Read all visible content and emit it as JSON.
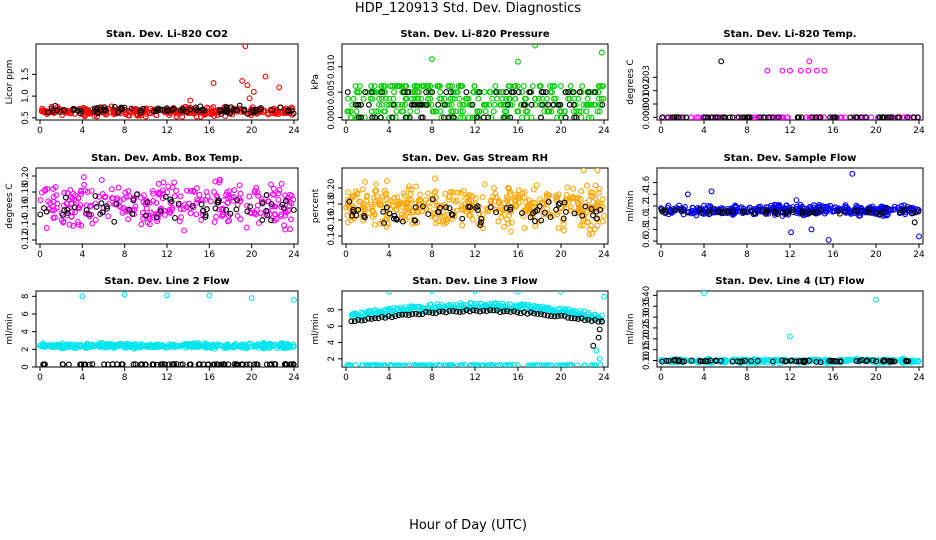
{
  "title": "HDP_120913 Std. Dev. Diagnostics",
  "xcaption": "Hour of Day (UTC)",
  "colors": {
    "black": "#000000",
    "red": "#ff0000",
    "green": "#00cc00",
    "magenta": "#ff00ff",
    "orange": "#ffa500",
    "blue": "#0000ff",
    "cyan": "#00e5ee"
  },
  "chart_data": [
    {
      "type": "scatter",
      "title": "Stan. Dev. Li-820 CO2",
      "ylabel": "Licor ppm",
      "xlim": [
        0,
        24
      ],
      "xticks": [
        0,
        4,
        8,
        12,
        16,
        20,
        24
      ],
      "ylim": [
        0.45,
        2.2
      ],
      "yticks": [
        0.5,
        1.0,
        1.5
      ],
      "series": [
        {
          "color": "red",
          "band": [
            0.5,
            0.8
          ],
          "n": 320,
          "outliers": [
            [
              19.4,
              2.15
            ],
            [
              19.1,
              1.35
            ],
            [
              19.6,
              1.25
            ],
            [
              20.2,
              1.1
            ],
            [
              21.3,
              1.45
            ],
            [
              22.6,
              1.2
            ],
            [
              16.4,
              1.3
            ],
            [
              19.8,
              0.95
            ],
            [
              14.2,
              0.9
            ]
          ]
        },
        {
          "color": "black",
          "band": [
            0.55,
            0.8
          ],
          "n": 90,
          "outliers": []
        }
      ]
    },
    {
      "type": "scatter",
      "title": "Stan. Dev. Li-820 Pressure",
      "ylabel": "kPa",
      "xlim": [
        0,
        24
      ],
      "xticks": [
        0,
        4,
        8,
        12,
        16,
        20,
        24
      ],
      "ylim": [
        -0.0005,
        0.0145
      ],
      "yticks": [
        0.0,
        0.005,
        0.01
      ],
      "series": [
        {
          "color": "green",
          "levels": [
            0.0,
            0.0012,
            0.0025,
            0.0037,
            0.005,
            0.0062
          ],
          "n": 360,
          "outliers": [
            [
              17.6,
              0.0142
            ],
            [
              8.0,
              0.0115
            ],
            [
              16.0,
              0.011
            ],
            [
              23.8,
              0.0128
            ]
          ]
        },
        {
          "color": "black",
          "levels": [
            0.0,
            0.0025,
            0.005
          ],
          "n": 80,
          "outliers": []
        }
      ]
    },
    {
      "type": "scatter",
      "title": "Stan. Dev. Li-820 Temp.",
      "ylabel": "degrees C",
      "xlim": [
        0,
        24
      ],
      "xticks": [
        0,
        4,
        8,
        12,
        16,
        20,
        24
      ],
      "ylim": [
        -0.0002,
        0.0055
      ],
      "yticks": [
        0.0,
        0.001,
        0.002,
        0.003
      ],
      "series": [
        {
          "color": "magenta",
          "levels": [
            0.0
          ],
          "n": 80,
          "outliers": [
            [
              9.9,
              0.0035
            ],
            [
              11.3,
              0.0035
            ],
            [
              12.0,
              0.0035
            ],
            [
              13.0,
              0.0035
            ],
            [
              13.7,
              0.0035
            ],
            [
              14.5,
              0.0035
            ],
            [
              15.2,
              0.0035
            ],
            [
              13.8,
              0.0042
            ],
            [
              5.5,
              0.0
            ]
          ]
        },
        {
          "color": "black",
          "levels": [
            0.0
          ],
          "n": 70,
          "outliers": [
            [
              5.6,
              0.0042
            ]
          ]
        }
      ]
    },
    {
      "type": "scatter",
      "title": "Stan. Dev. Amb. Box Temp.",
      "ylabel": "degrees C",
      "xlim": [
        0,
        24
      ],
      "xticks": [
        0,
        4,
        8,
        12,
        16,
        20,
        24
      ],
      "ylim": [
        0.115,
        0.21
      ],
      "yticks": [
        0.12,
        0.14,
        0.16,
        0.18,
        0.2
      ],
      "series": [
        {
          "color": "magenta",
          "band": [
            0.125,
            0.205
          ],
          "n": 300,
          "outliers": []
        },
        {
          "color": "black",
          "band": [
            0.135,
            0.185
          ],
          "n": 60,
          "outliers": []
        }
      ]
    },
    {
      "type": "scatter",
      "title": "Stan. Dev. Gas Stream RH",
      "ylabel": "percent",
      "xlim": [
        0,
        24
      ],
      "xticks": [
        0,
        4,
        8,
        12,
        16,
        20,
        24
      ],
      "ylim": [
        0.13,
        0.225
      ],
      "yticks": [
        0.14,
        0.16,
        0.18,
        0.2
      ],
      "series": [
        {
          "color": "orange",
          "band": [
            0.14,
            0.215
          ],
          "n": 420,
          "outliers": [
            [
              23.4,
              0.222
            ],
            [
              22.1,
              0.222
            ]
          ]
        },
        {
          "color": "black",
          "band": [
            0.15,
            0.19
          ],
          "n": 70,
          "outliers": []
        }
      ]
    },
    {
      "type": "scatter",
      "title": "Stan. Dev. Sample Flow",
      "ylabel": "ml/min",
      "xlim": [
        0,
        24
      ],
      "xticks": [
        0,
        4,
        8,
        12,
        16,
        20,
        24
      ],
      "ylim": [
        0.55,
        1.85
      ],
      "yticks": [
        0.6,
        0.8,
        1.0,
        1.2,
        1.4,
        1.6
      ],
      "series": [
        {
          "color": "blue",
          "band": [
            1.0,
            1.25
          ],
          "n": 380,
          "outliers": [
            [
              17.8,
              1.75
            ],
            [
              4.7,
              1.45
            ],
            [
              2.5,
              1.4
            ],
            [
              12.6,
              1.3
            ],
            [
              15.6,
              0.62
            ],
            [
              24.0,
              0.68
            ],
            [
              12.1,
              0.75
            ],
            [
              14.0,
              0.8
            ]
          ]
        },
        {
          "color": "black",
          "band": [
            1.02,
            1.18
          ],
          "n": 70,
          "outliers": [
            [
              23.6,
              0.92
            ]
          ]
        }
      ]
    },
    {
      "type": "scatter",
      "title": "Stan. Dev. Line 2 Flow",
      "ylabel": "ml/min",
      "xlim": [
        0,
        24
      ],
      "xticks": [
        0,
        4,
        8,
        12,
        16,
        20,
        24
      ],
      "ylim": [
        0,
        8.6
      ],
      "yticks": [
        0,
        2,
        4,
        6,
        8
      ],
      "series": [
        {
          "color": "cyan",
          "band": [
            2.0,
            2.8
          ],
          "n": 380,
          "outliers": [
            [
              4.0,
              8.0
            ],
            [
              8.0,
              8.2
            ],
            [
              12.0,
              8.1
            ],
            [
              16.0,
              8.1
            ],
            [
              20.0,
              7.8
            ],
            [
              24.0,
              7.6
            ]
          ]
        },
        {
          "color": "black",
          "band": [
            0.25,
            0.35
          ],
          "n": 90,
          "outliers": []
        }
      ]
    },
    {
      "type": "scatter",
      "title": "Stan. Dev. Line 3 Flow",
      "ylabel": "ml/min",
      "xlim": [
        0,
        24
      ],
      "xticks": [
        0,
        4,
        8,
        12,
        16,
        20,
        24
      ],
      "ylim": [
        1,
        10.3
      ],
      "yticks": [
        2,
        4,
        6,
        8
      ],
      "curve": {
        "start": 6.5,
        "peak": 8.0,
        "end": 6.0
      },
      "series": [
        {
          "color": "cyan",
          "band": [
            1.1,
            1.3
          ],
          "n": 160,
          "curveOffset": 0.6,
          "curveN": 260,
          "outliers": [
            [
              4.0,
              10.2
            ],
            [
              8.0,
              10.3
            ],
            [
              12.0,
              10.3
            ],
            [
              16.0,
              10.2
            ],
            [
              20.0,
              10.2
            ],
            [
              24.0,
              9.6
            ],
            [
              23.3,
              3.0
            ],
            [
              23.6,
              2.0
            ]
          ]
        },
        {
          "color": "black",
          "band": [
            6.0,
            6.0
          ],
          "n": 0,
          "curveOffset": 0.0,
          "curveN": 75,
          "outliers": [
            [
              23.6,
              5.6
            ],
            [
              23.8,
              6.6
            ],
            [
              23.5,
              4.6
            ],
            [
              23.0,
              3.6
            ]
          ]
        }
      ]
    },
    {
      "type": "scatter",
      "title": "Stan. Dev. Line 4 (LT) Flow",
      "ylabel": "ml/min",
      "xlim": [
        0,
        24
      ],
      "xticks": [
        0,
        4,
        8,
        12,
        16,
        20,
        24
      ],
      "ylim": [
        0.07,
        0.42
      ],
      "yticks": [
        0.1,
        0.15,
        0.2,
        0.25,
        0.3,
        0.35,
        0.4
      ],
      "series": [
        {
          "color": "cyan",
          "band": [
            0.085,
            0.11
          ],
          "n": 340,
          "outliers": [
            [
              4.0,
              0.41
            ],
            [
              20.0,
              0.38
            ],
            [
              12.0,
              0.21
            ]
          ]
        },
        {
          "color": "black",
          "band": [
            0.09,
            0.105
          ],
          "n": 70,
          "outliers": []
        }
      ]
    }
  ]
}
